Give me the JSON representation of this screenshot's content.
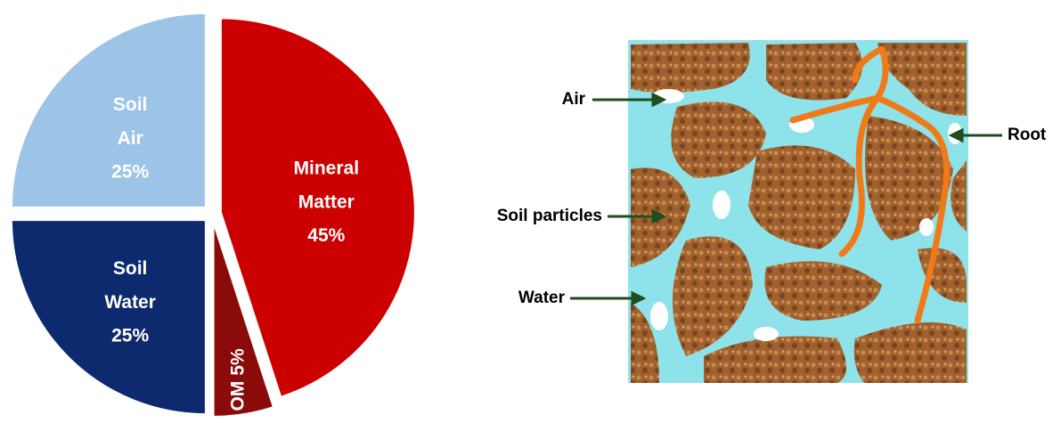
{
  "chart_data": {
    "type": "pie",
    "categories": [
      "Mineral Matter",
      "OM",
      "Soil Water",
      "Soil Air"
    ],
    "values": [
      45,
      5,
      25,
      25
    ],
    "value_labels": [
      "45%",
      "5%",
      "25%",
      "25%"
    ],
    "colors": [
      "#cc0000",
      "#8b0a0a",
      "#0d2a6e",
      "#9dc3e6"
    ],
    "exploded": true
  },
  "diagram": {
    "labels": [
      "Air",
      "Soil particles",
      "Water",
      "Root"
    ]
  }
}
